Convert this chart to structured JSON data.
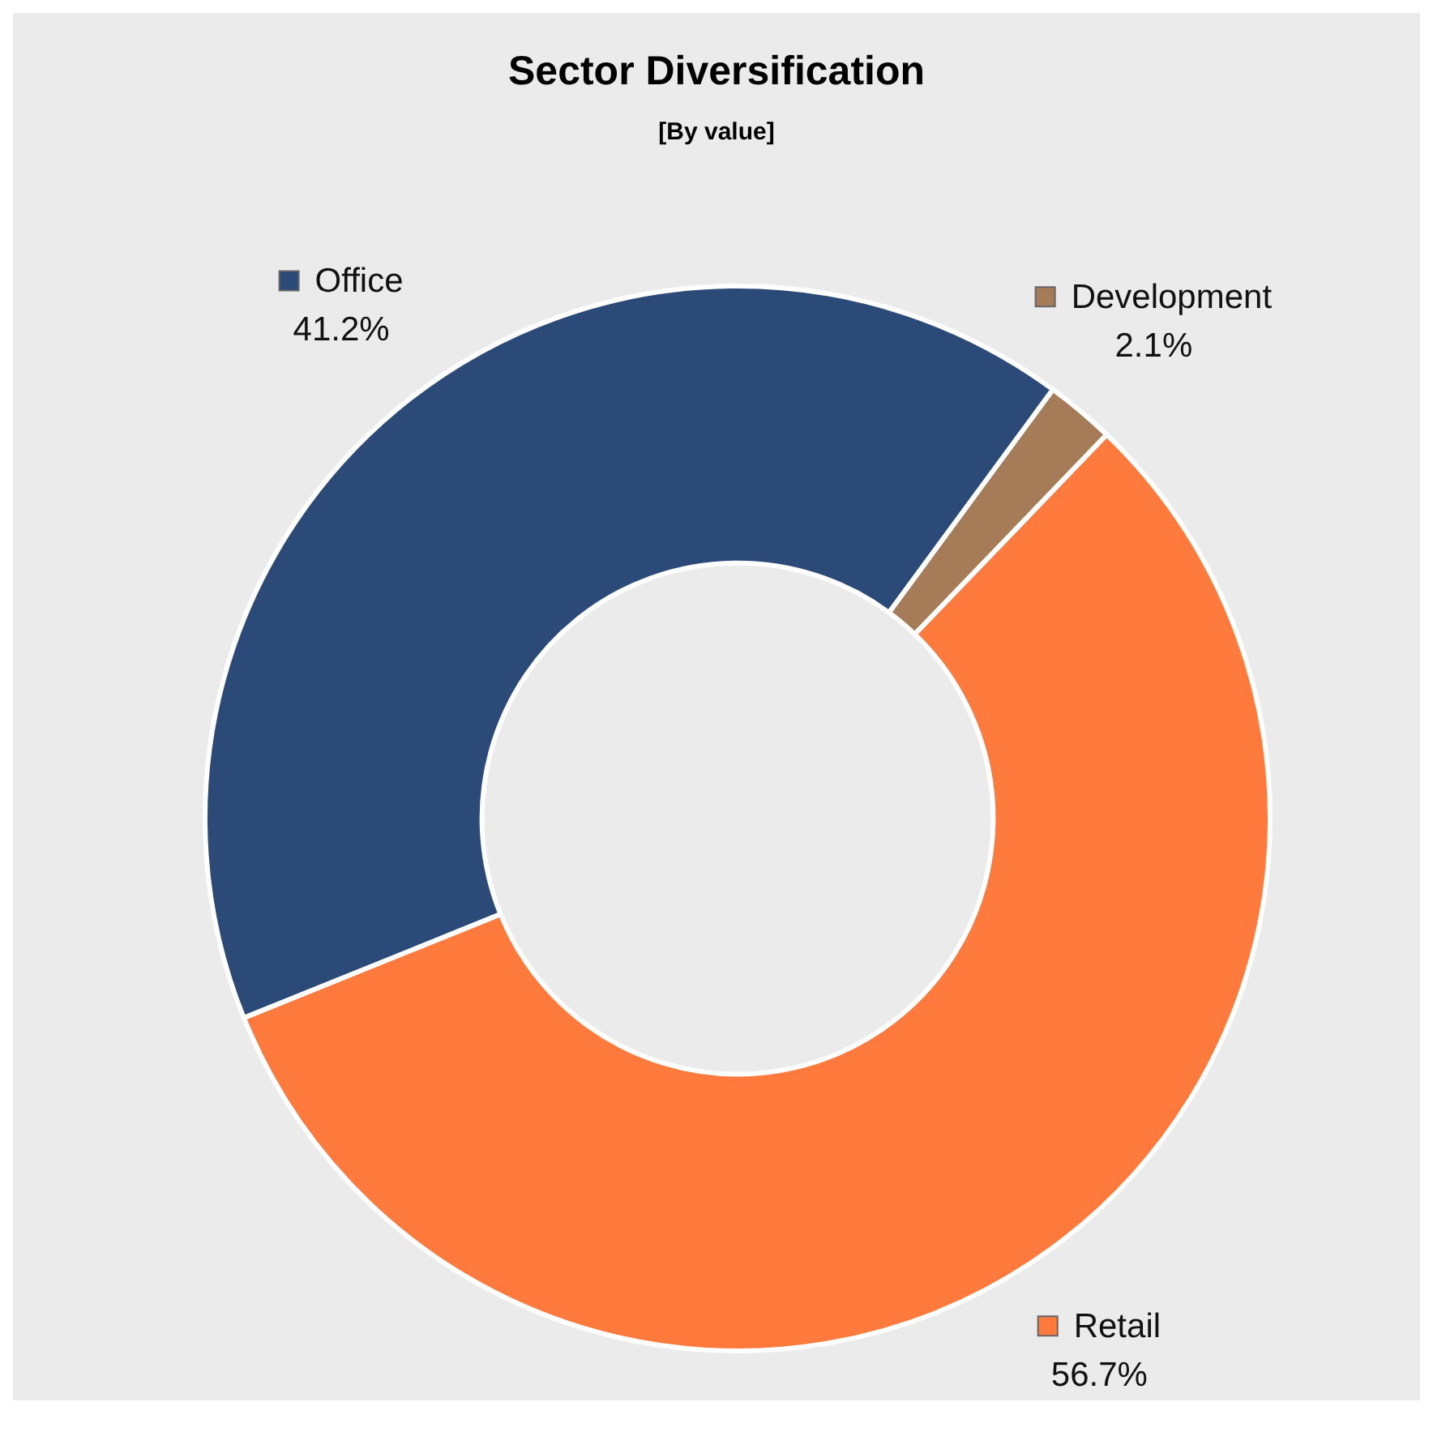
{
  "chart_data": {
    "type": "donut",
    "title": "Sector Diversification",
    "subtitle": "[By value]",
    "categories": [
      "Office",
      "Development",
      "Retail"
    ],
    "values": [
      41.2,
      2.1,
      56.7
    ],
    "value_labels": [
      "41.2%",
      "2.1%",
      "56.7%"
    ],
    "colors": [
      "#2b4a78",
      "#a67c58",
      "#ff7a3c"
    ],
    "legend": "top right"
  }
}
